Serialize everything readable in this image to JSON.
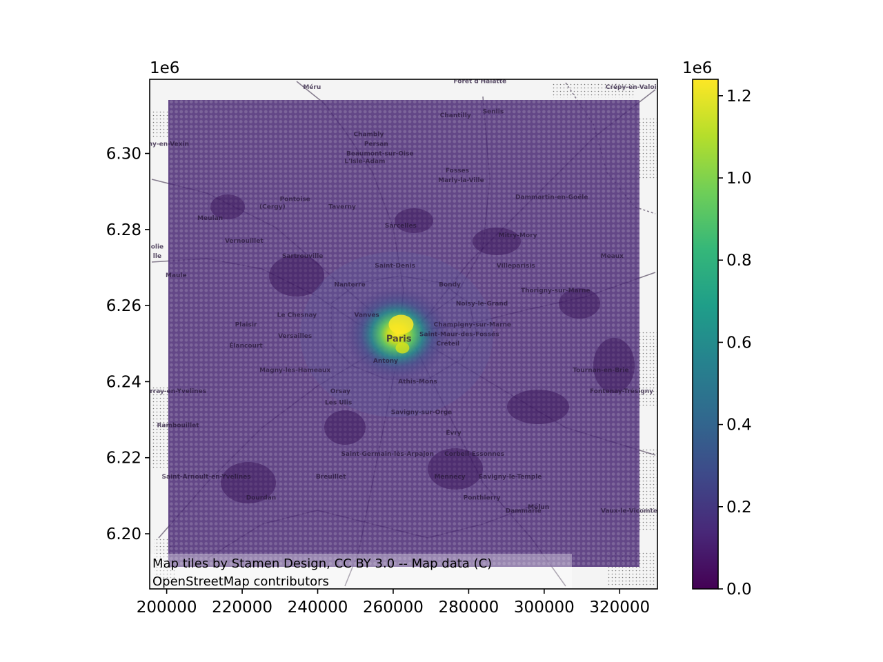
{
  "map": {
    "x_axis": {
      "ticks": [
        200000,
        220000,
        240000,
        260000,
        280000,
        300000,
        320000
      ],
      "tick_labels": [
        "200000",
        "220000",
        "240000",
        "260000",
        "280000",
        "300000",
        "320000"
      ],
      "range": [
        195500,
        330000
      ]
    },
    "y_axis": {
      "ticks": [
        6200000,
        6220000,
        6240000,
        6260000,
        6280000,
        6300000
      ],
      "tick_labels": [
        "6.20",
        "6.22",
        "6.24",
        "6.26",
        "6.28",
        "6.30"
      ],
      "offset_label": "1e6",
      "range": [
        6185500,
        6319500
      ]
    },
    "data_extent": {
      "x": [
        200500,
        324500
      ],
      "y": [
        6191000,
        6312500
      ]
    },
    "peak_center": {
      "x": 261000,
      "y": 6252500
    },
    "attribution": [
      "Map tiles by Stamen Design, CC BY 3.0 -- Map data (C)",
      "OpenStreetMap contributors"
    ],
    "places": [
      {
        "name": "Forêt d'Halatte",
        "x": 283000,
        "y": 6318500
      },
      {
        "name": "Méru",
        "x": 238500,
        "y": 6317000
      },
      {
        "name": "Crépy-en-Valois",
        "x": 323500,
        "y": 6317000
      },
      {
        "name": "Senlis",
        "x": 286500,
        "y": 6310500
      },
      {
        "name": "Chantilly",
        "x": 276500,
        "y": 6309500
      },
      {
        "name": "Chambly",
        "x": 253500,
        "y": 6304500
      },
      {
        "name": "Persan",
        "x": 255500,
        "y": 6302000
      },
      {
        "name": "ny-en-Vexin",
        "x": 200500,
        "y": 6302000
      },
      {
        "name": "Beaumont-sur-Oise",
        "x": 256500,
        "y": 6299500
      },
      {
        "name": "L'Isle-Adam",
        "x": 252500,
        "y": 6297500
      },
      {
        "name": "Fosses",
        "x": 277000,
        "y": 6295000
      },
      {
        "name": "Marly-la-Ville",
        "x": 278000,
        "y": 6292500
      },
      {
        "name": "Dammartin-en-Goële",
        "x": 302000,
        "y": 6288000
      },
      {
        "name": "Pontoise",
        "x": 234000,
        "y": 6287500
      },
      {
        "name": "(Cergy)",
        "x": 228000,
        "y": 6285500
      },
      {
        "name": "Taverny",
        "x": 246500,
        "y": 6285500
      },
      {
        "name": "Meulan",
        "x": 211500,
        "y": 6282500
      },
      {
        "name": "Sarcelles",
        "x": 262000,
        "y": 6280500
      },
      {
        "name": "Mitry-Mory",
        "x": 293000,
        "y": 6278000
      },
      {
        "name": "Vernouillet",
        "x": 220500,
        "y": 6276500
      },
      {
        "name": "Sartrouville",
        "x": 236000,
        "y": 6272500
      },
      {
        "name": "Meaux",
        "x": 318000,
        "y": 6272500
      },
      {
        "name": "Saint-Denis",
        "x": 260500,
        "y": 6270000
      },
      {
        "name": "Villeparisis",
        "x": 292500,
        "y": 6270000
      },
      {
        "name": "Maule",
        "x": 202500,
        "y": 6267500
      },
      {
        "name": "Nanterre",
        "x": 248500,
        "y": 6265000
      },
      {
        "name": "Bondy",
        "x": 275000,
        "y": 6265000
      },
      {
        "name": "Thorigny-sur-Marne",
        "x": 303000,
        "y": 6263500
      },
      {
        "name": "Paris",
        "x": 261500,
        "y": 6250500
      },
      {
        "name": "Noisy-le-Grand",
        "x": 283500,
        "y": 6260000
      },
      {
        "name": "Le Chesnay",
        "x": 234500,
        "y": 6257000
      },
      {
        "name": "Vanves",
        "x": 253000,
        "y": 6257000
      },
      {
        "name": "Plaisir",
        "x": 221000,
        "y": 6254500
      },
      {
        "name": "Champigny-sur-Marne",
        "x": 281000,
        "y": 6254500
      },
      {
        "name": "Versailles",
        "x": 234000,
        "y": 6251500
      },
      {
        "name": "Saint-Maur-des-Fossés",
        "x": 277500,
        "y": 6252000
      },
      {
        "name": "Élancourt",
        "x": 221000,
        "y": 6249000
      },
      {
        "name": "Créteil",
        "x": 274500,
        "y": 6249500
      },
      {
        "name": "Antony",
        "x": 258000,
        "y": 6245000
      },
      {
        "name": "Magny-les-Hameaux",
        "x": 234000,
        "y": 6242500
      },
      {
        "name": "Tournan-en-Brie",
        "x": 315000,
        "y": 6242500
      },
      {
        "name": "Athis-Mons",
        "x": 266500,
        "y": 6239500
      },
      {
        "name": "Le Perray-en-Yvelines",
        "x": 200500,
        "y": 6237000
      },
      {
        "name": "Orsay",
        "x": 246000,
        "y": 6237000
      },
      {
        "name": "Fontenay-Trésigny",
        "x": 320500,
        "y": 6237000
      },
      {
        "name": "Les Ulis",
        "x": 245500,
        "y": 6234000
      },
      {
        "name": "Savigny-sur-Orge",
        "x": 267500,
        "y": 6231500
      },
      {
        "name": "Rambouillet",
        "x": 203000,
        "y": 6228000
      },
      {
        "name": "Évry",
        "x": 276000,
        "y": 6226000
      },
      {
        "name": "Saint-Germain-lès-Arpajon",
        "x": 258500,
        "y": 6220500
      },
      {
        "name": "Corbeil-Essonnes",
        "x": 281500,
        "y": 6220500
      },
      {
        "name": "Saint-Arnoult-en-Yvelines",
        "x": 210500,
        "y": 6214500
      },
      {
        "name": "Breuillet",
        "x": 243500,
        "y": 6214500
      },
      {
        "name": "Mennecy",
        "x": 275000,
        "y": 6214500
      },
      {
        "name": "Savigny-le-Temple",
        "x": 291000,
        "y": 6214500
      },
      {
        "name": "Dourdan",
        "x": 225000,
        "y": 6209000
      },
      {
        "name": "Ponthierry",
        "x": 283500,
        "y": 6209000
      },
      {
        "name": "Melun",
        "x": 298500,
        "y": 6206500
      },
      {
        "name": "Dammarie",
        "x": 294500,
        "y": 6205500
      },
      {
        "name": "Vaux-le-Vicomte",
        "x": 322500,
        "y": 6205500
      },
      {
        "name": "olie",
        "x": 197500,
        "y": 6275000
      },
      {
        "name": "lle",
        "x": 197500,
        "y": 6272500
      }
    ]
  },
  "colorbar": {
    "ticks": [
      0,
      200000,
      400000,
      600000,
      800000,
      1000000,
      1200000
    ],
    "tick_labels": [
      "0.0",
      "0.2",
      "0.4",
      "0.6",
      "0.8",
      "1.0",
      "1.2"
    ],
    "offset_label": "1e6",
    "range": [
      0,
      1240000
    ],
    "colormap": "viridis",
    "colors": [
      "#440154",
      "#482878",
      "#3e4989",
      "#31688e",
      "#26828e",
      "#1f9e89",
      "#35b779",
      "#6ece58",
      "#b5de2b",
      "#fde725"
    ]
  },
  "chart_data": {
    "type": "scatter",
    "title": "",
    "xlabel": "",
    "ylabel": "",
    "xlim": [
      195500,
      330000
    ],
    "ylim": [
      6185500,
      6319500
    ],
    "grid": false,
    "colorbar": {
      "colormap": "viridis",
      "range": [
        0,
        1240000
      ],
      "offset": "1e6"
    },
    "points_description": "regular 1 km grid of markers over the Paris region, colored by value",
    "peak": {
      "x": 261000,
      "y": 6252500,
      "value": 1240000
    },
    "background_value": 30000
  }
}
